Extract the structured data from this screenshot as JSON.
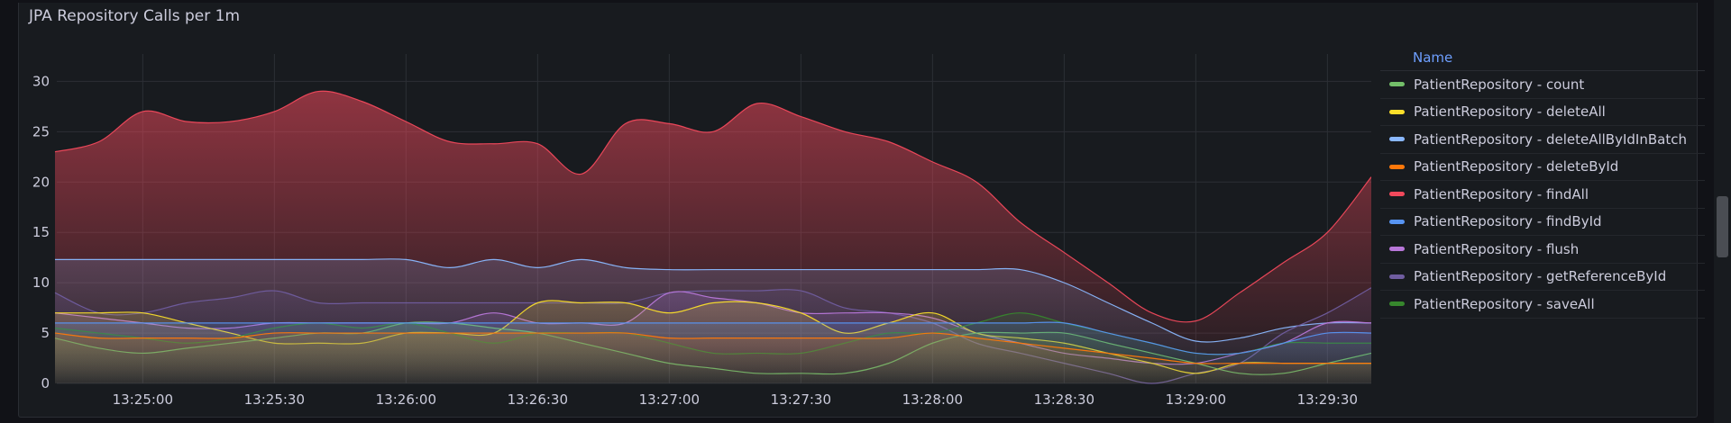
{
  "panel": {
    "title": "JPA Repository Calls per 1m"
  },
  "legend": {
    "header": "Name",
    "items": [
      {
        "label": "PatientRepository - count",
        "color": "#73bf69"
      },
      {
        "label": "PatientRepository - deleteAll",
        "color": "#fade2a"
      },
      {
        "label": "PatientRepository - deleteAllByIdInBatch",
        "color": "#8ab8ff"
      },
      {
        "label": "PatientRepository - deleteById",
        "color": "#ff780a"
      },
      {
        "label": "PatientRepository - findAll",
        "color": "#f2495c"
      },
      {
        "label": "PatientRepository - findById",
        "color": "#5794f2"
      },
      {
        "label": "PatientRepository - flush",
        "color": "#b877d9"
      },
      {
        "label": "PatientRepository - getReferenceById",
        "color": "#705da0"
      },
      {
        "label": "PatientRepository - saveAll",
        "color": "#37872d"
      }
    ]
  },
  "chart_data": {
    "type": "area",
    "title": "JPA Repository Calls per 1m",
    "xlabel": "",
    "ylabel": "",
    "ylim": [
      0,
      32
    ],
    "yticks": [
      0,
      5,
      10,
      15,
      20,
      25,
      30
    ],
    "xlim": [
      "13:24:40",
      "13:29:40"
    ],
    "xticks": [
      "13:25:00",
      "13:25:30",
      "13:26:00",
      "13:26:30",
      "13:27:00",
      "13:27:30",
      "13:28:00",
      "13:28:30",
      "13:29:00",
      "13:29:30"
    ],
    "x": [
      "13:24:40",
      "13:24:50",
      "13:25:00",
      "13:25:10",
      "13:25:20",
      "13:25:30",
      "13:25:40",
      "13:25:50",
      "13:26:00",
      "13:26:10",
      "13:26:20",
      "13:26:30",
      "13:26:40",
      "13:26:50",
      "13:27:00",
      "13:27:10",
      "13:27:20",
      "13:27:30",
      "13:27:40",
      "13:27:50",
      "13:28:00",
      "13:28:10",
      "13:28:20",
      "13:28:30",
      "13:28:40",
      "13:28:50",
      "13:29:00",
      "13:29:10",
      "13:29:20",
      "13:29:30",
      "13:29:40"
    ],
    "grid": true,
    "legend_position": "right",
    "series": [
      {
        "name": "PatientRepository - count",
        "color": "#73bf69",
        "values": [
          4.5,
          3.5,
          3,
          3.5,
          4,
          4.5,
          5,
          5,
          6,
          6,
          5.5,
          5,
          4,
          3,
          2,
          1.5,
          1,
          1,
          1,
          2,
          4,
          5,
          5,
          5,
          4,
          3,
          2,
          1,
          1,
          2,
          3
        ]
      },
      {
        "name": "PatientRepository - deleteAll",
        "color": "#fade2a",
        "values": [
          7,
          7,
          7,
          6,
          5,
          4,
          4,
          4,
          5,
          5,
          5,
          8,
          8,
          8,
          7,
          8,
          8,
          7,
          5,
          6,
          7,
          5,
          4.5,
          4,
          3,
          2,
          1,
          2,
          2,
          2,
          2
        ]
      },
      {
        "name": "PatientRepository - deleteAllByIdInBatch",
        "color": "#8ab8ff",
        "values": [
          12.3,
          12.3,
          12.3,
          12.3,
          12.3,
          12.3,
          12.3,
          12.3,
          12.3,
          11.5,
          12.3,
          11.5,
          12.3,
          11.5,
          11.3,
          11.3,
          11.3,
          11.3,
          11.3,
          11.3,
          11.3,
          11.3,
          11.3,
          10,
          8,
          6,
          4.2,
          4.5,
          5.5,
          6,
          6
        ]
      },
      {
        "name": "PatientRepository - deleteById",
        "color": "#ff780a",
        "values": [
          5,
          4.5,
          4.5,
          4.5,
          4.5,
          5,
          5,
          5,
          5,
          5,
          5,
          5,
          5,
          5,
          4.5,
          4.5,
          4.5,
          4.5,
          4.5,
          4.5,
          5,
          4.5,
          4,
          3.5,
          3,
          2.5,
          2,
          2,
          2,
          2,
          2
        ]
      },
      {
        "name": "PatientRepository - findAll",
        "color": "#f2495c",
        "values": [
          23,
          24,
          27,
          26,
          26,
          27,
          29,
          28,
          26,
          24,
          23.8,
          23.8,
          20.8,
          25.8,
          25.8,
          25,
          27.8,
          26.5,
          25,
          24,
          22,
          20,
          16,
          13,
          10,
          7,
          6.2,
          9,
          12,
          15,
          20.5
        ]
      },
      {
        "name": "PatientRepository - findById",
        "color": "#5794f2",
        "values": [
          6,
          6,
          6,
          6,
          6,
          6,
          6,
          6,
          6,
          6,
          6,
          6,
          6,
          6,
          6,
          6,
          6,
          6,
          6,
          6,
          6,
          6,
          6,
          6,
          5,
          4,
          3,
          3,
          4,
          5,
          5
        ]
      },
      {
        "name": "PatientRepository - flush",
        "color": "#b877d9",
        "values": [
          7,
          6.5,
          6,
          5.5,
          5.5,
          6,
          6,
          6,
          6,
          6,
          7,
          6,
          6,
          6,
          9,
          8.5,
          8,
          7,
          7,
          7,
          6.5,
          5,
          4,
          3,
          2.5,
          2,
          2,
          3,
          4,
          6,
          6
        ]
      },
      {
        "name": "PatientRepository - getReferenceById",
        "color": "#705da0",
        "values": [
          9,
          7,
          7,
          8,
          8.5,
          9.2,
          8,
          8,
          8,
          8,
          8,
          8,
          8,
          8,
          9,
          9.2,
          9.2,
          9.2,
          7.5,
          7,
          6,
          4,
          3,
          2,
          1,
          0,
          1,
          2,
          5,
          7,
          9.5
        ]
      },
      {
        "name": "PatientRepository - saveAll",
        "color": "#37872d",
        "values": [
          5.5,
          5,
          4.5,
          4,
          4.5,
          5.5,
          6,
          5.5,
          6,
          5,
          4,
          5,
          5,
          5,
          4,
          3,
          3,
          3,
          4,
          5,
          5,
          6,
          7,
          6,
          5,
          4,
          3,
          3,
          4,
          4,
          4
        ]
      }
    ]
  }
}
